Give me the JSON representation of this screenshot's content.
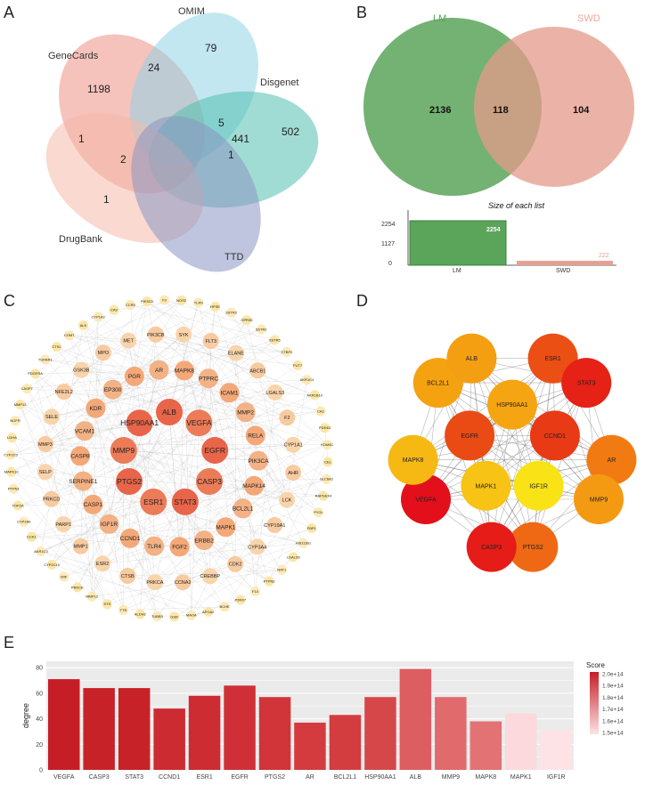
{
  "panel_labels": {
    "a": "A",
    "b": "B",
    "c": "C",
    "d": "D",
    "e": "E"
  },
  "chart_data": [
    {
      "type": "venn",
      "id": "A",
      "sets": [
        {
          "name": "GeneCards",
          "color": "#ee8f85"
        },
        {
          "name": "OMIM",
          "color": "#8fd3e6"
        },
        {
          "name": "Disgenet",
          "color": "#52bfae"
        },
        {
          "name": "DrugBank",
          "color": "#f4b9aa"
        },
        {
          "name": "TTD",
          "color": "#8b95c2"
        }
      ],
      "region_counts": [
        "1198",
        "79",
        "502",
        "1",
        "24",
        "5",
        "441",
        "1",
        "2",
        "1"
      ]
    },
    {
      "type": "venn",
      "id": "B",
      "sets": [
        {
          "name": "LM",
          "color": "#5aa55a",
          "text_color": "#5aa55a"
        },
        {
          "name": "SWD",
          "color": "#e49a8a",
          "text_color": "#f0a89b"
        }
      ],
      "region_counts": {
        "LM_only": "2136",
        "overlap": "118",
        "SWD_only": "104"
      },
      "bar_title": "Size of each list",
      "bar_categories": [
        "LM",
        "SWD"
      ],
      "bar_values": [
        2254,
        222
      ],
      "bar_value_labels": [
        "2254",
        "222"
      ],
      "bar_ticks": [
        "2254",
        "1127",
        "0"
      ]
    },
    {
      "type": "network",
      "id": "C",
      "inner": [
        "ALB",
        "VEGFA",
        "EGFR",
        "CASP3",
        "STAT3",
        "ESR1",
        "PTGS2",
        "MMP9",
        "HSP90AA1"
      ],
      "middle": [
        "MAPK8",
        "PTPRC",
        "ICAM1",
        "MMP2",
        "RELA",
        "PIK3CA",
        "MAPK14",
        "BCL2L1",
        "MAPK1",
        "ERBB2",
        "FGF2",
        "TLR4",
        "CCND1",
        "IGF1R",
        "CASP1",
        "SERPINE1",
        "CASP8",
        "VCAM1",
        "KDR",
        "EP300",
        "PGR",
        "AR"
      ],
      "outer": [
        "FLT3",
        "ELANE",
        "ABCB1",
        "LGALS3",
        "F2",
        "CYP1A1",
        "AHR",
        "LCK",
        "CYP19A1",
        "CYP3A4",
        "CDK2",
        "CREBBP",
        "CCNA2",
        "PRKCA",
        "CTSB",
        "ESR2",
        "MMP1",
        "PARP1",
        "PRKCD",
        "SELP",
        "MMP3",
        "SELE",
        "NFE2L2",
        "GSK3B",
        "MPO",
        "MET",
        "PIK3CB",
        "SYK"
      ],
      "rim": [
        "GPR35",
        "SSTR1",
        "SSTR5",
        "CTBP2",
        "FUT7",
        "AKR1C4",
        "AKR1B10",
        "CA2",
        "PDE4D",
        "KDM4C",
        "CEL",
        "SLC6A2",
        "RAPGEF4",
        "PYGL",
        "FBP1",
        "HSD11B1",
        "LGALS9",
        "NAT1",
        "PTPN2",
        "F10",
        "P2RX7",
        "BCHE",
        "APOA2",
        "MAOA",
        "GSR",
        "TUBB3",
        "ALDH2",
        "TTR",
        "STS",
        "MMP12",
        "PRKCE",
        "MIF",
        "CYP2C19",
        "AKR1C3",
        "CCK1",
        "CYP2A6",
        "TOP2A",
        "PTPN1",
        "MAPK10",
        "CYP2C9",
        "LDHA",
        "NGFR",
        "MMP13",
        "CASP7",
        "PDGFRA",
        "TGFBR1",
        "CTSL",
        "COMT",
        "ALK",
        "CYP1A2",
        "CA9",
        "CCR5",
        "PIK3CD",
        "F3",
        "NOS2",
        "TLR9",
        "HPSE",
        "SSTR2"
      ]
    },
    {
      "type": "network",
      "id": "D",
      "nodes": [
        {
          "name": "HSP90AA1",
          "color": "#f5a511"
        },
        {
          "name": "ESR1",
          "color": "#ec4f14"
        },
        {
          "name": "STAT3",
          "color": "#e62116"
        },
        {
          "name": "CCND1",
          "color": "#e83a15"
        },
        {
          "name": "AR",
          "color": "#f27a12"
        },
        {
          "name": "MMP9",
          "color": "#f49a12"
        },
        {
          "name": "IGF1R",
          "color": "#f9e316"
        },
        {
          "name": "PTGS2",
          "color": "#ef6813"
        },
        {
          "name": "CASP3",
          "color": "#e51c18"
        },
        {
          "name": "MAPK1",
          "color": "#f7c314"
        },
        {
          "name": "VEGFA",
          "color": "#e3101b"
        },
        {
          "name": "MAPK8",
          "color": "#f6b913"
        },
        {
          "name": "EGFR",
          "color": "#ea4a14"
        },
        {
          "name": "BCL2L1",
          "color": "#f5a211"
        },
        {
          "name": "ALB",
          "color": "#f49e12"
        }
      ]
    },
    {
      "type": "bar",
      "id": "E",
      "categories": [
        "VEGFA",
        "CASP3",
        "STAT3",
        "CCND1",
        "ESR1",
        "EGFR",
        "PTGS2",
        "AR",
        "BCL2L1",
        "HSP90AA1",
        "ALB",
        "MMP9",
        "MAPK8",
        "MAPK1",
        "IGF1R"
      ],
      "values": [
        71,
        64,
        64,
        48,
        58,
        66,
        57,
        37,
        43,
        57,
        79,
        57,
        38,
        44,
        31
      ],
      "colors": [
        "#c61e27",
        "#c82229",
        "#c82229",
        "#cc2b31",
        "#cc2c32",
        "#cf3037",
        "#d13439",
        "#d33b3f",
        "#d33d40",
        "#d6474a",
        "#dd5e60",
        "#e06a6c",
        "#e27274",
        "#fbd9dc",
        "#fde3e5"
      ],
      "ylabel": "degree",
      "xlabel": "",
      "ylim": [
        0,
        85
      ],
      "yticks": [
        "0",
        "20",
        "40",
        "60",
        "80"
      ],
      "legend": {
        "title": "Score",
        "labels": [
          "2.0e+14",
          "1.9e+14",
          "1.8e+14",
          "1.7e+14",
          "1.6e+14",
          "1.5e+14"
        ],
        "position": "right"
      }
    }
  ]
}
